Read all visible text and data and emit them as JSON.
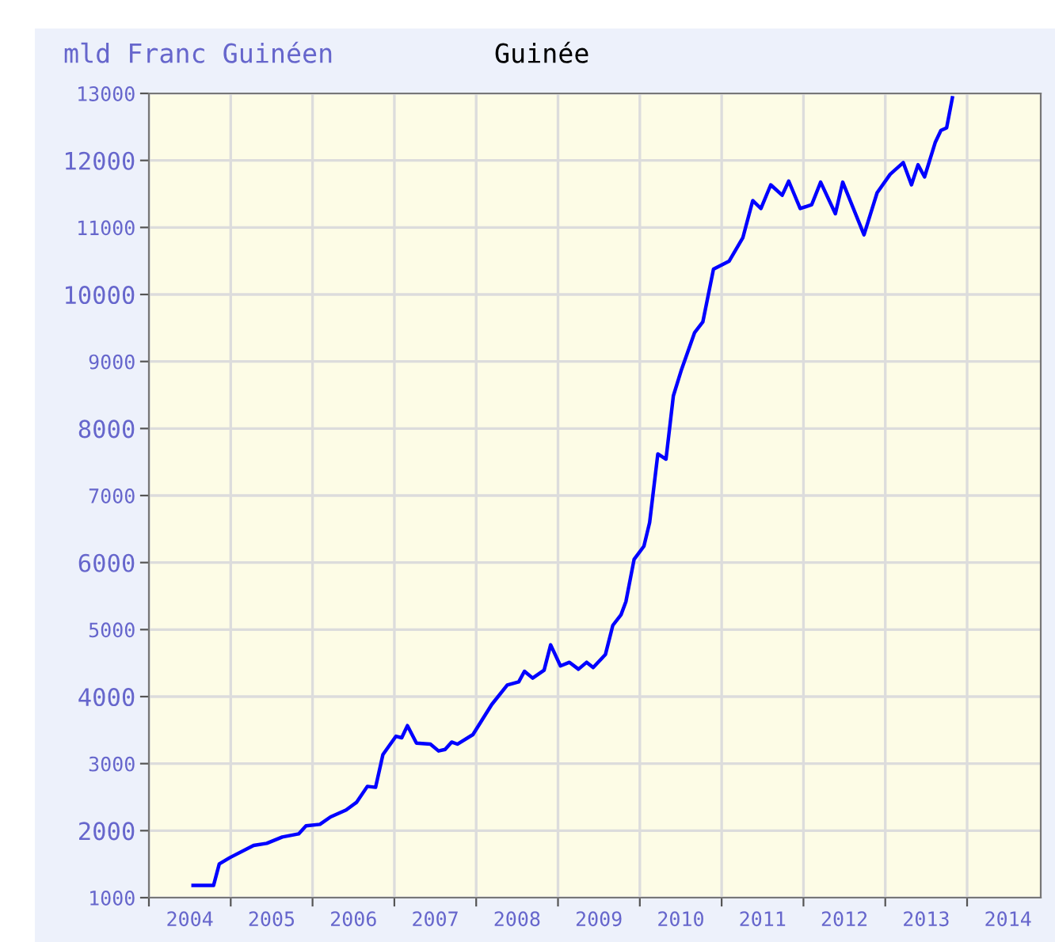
{
  "chart_data": {
    "type": "line",
    "title": "Guinée",
    "ylabel": "mld Franc Guinéen",
    "x": [
      2004.54,
      2004.79,
      2004.86,
      2004.99,
      2005.28,
      2005.44,
      2005.63,
      2005.83,
      2005.92,
      2006.09,
      2006.22,
      2006.41,
      2006.54,
      2006.67,
      2006.77,
      2006.86,
      2007.02,
      2007.09,
      2007.16,
      2007.27,
      2007.44,
      2007.54,
      2007.62,
      2007.7,
      2007.77,
      2007.96,
      2008.19,
      2008.38,
      2008.52,
      2008.59,
      2008.69,
      2008.83,
      2008.91,
      2009.03,
      2009.14,
      2009.25,
      2009.35,
      2009.43,
      2009.58,
      2009.67,
      2009.77,
      2009.83,
      2009.93,
      2010.05,
      2010.12,
      2010.22,
      2010.32,
      2010.41,
      2010.51,
      2010.67,
      2010.77,
      2010.9,
      2011.09,
      2011.26,
      2011.38,
      2011.48,
      2011.6,
      2011.74,
      2011.82,
      2011.96,
      2012.1,
      2012.21,
      2012.39,
      2012.48,
      2012.74,
      2012.9,
      2013.06,
      2013.22,
      2013.32,
      2013.4,
      2013.48,
      2013.61,
      2013.68,
      2013.75,
      2013.82
    ],
    "series": [
      {
        "color": "#0000ff",
        "values": [
          1182,
          1182,
          1503,
          1598,
          1780,
          1811,
          1905,
          1952,
          2071,
          2094,
          2205,
          2307,
          2425,
          2661,
          2646,
          3134,
          3409,
          3386,
          3567,
          3307,
          3291,
          3189,
          3212,
          3322,
          3291,
          3433,
          3882,
          4173,
          4220,
          4378,
          4276,
          4394,
          4772,
          4457,
          4512,
          4409,
          4512,
          4433,
          4630,
          5063,
          5221,
          5417,
          6047,
          6244,
          6598,
          7621,
          7543,
          8488,
          8882,
          9432,
          9590,
          10377,
          10495,
          10850,
          11400,
          11282,
          11636,
          11480,
          11692,
          11282,
          11338,
          11676,
          11204,
          11676,
          10890,
          11518,
          11794,
          11967,
          11636,
          11936,
          11754,
          12267,
          12448,
          12487,
          12935
        ]
      }
    ],
    "xlim": [
      2004,
      2014.9
    ],
    "xticks": [
      {
        "value": 2004,
        "label": null
      },
      {
        "value": 2005,
        "label": null
      },
      {
        "value": 2006,
        "label": null
      },
      {
        "value": 2007,
        "label": null
      },
      {
        "value": 2008,
        "label": null
      },
      {
        "value": 2009,
        "label": null
      },
      {
        "value": 2010,
        "label": null
      },
      {
        "value": 2011,
        "label": null
      },
      {
        "value": 2012,
        "label": null
      },
      {
        "value": 2013,
        "label": null
      },
      {
        "value": 2014,
        "label": null
      },
      {
        "value": 2004.5,
        "label": "2004"
      },
      {
        "value": 2005.5,
        "label": "2005"
      },
      {
        "value": 2006.5,
        "label": "2006"
      },
      {
        "value": 2007.5,
        "label": "2007"
      },
      {
        "value": 2008.5,
        "label": "2008"
      },
      {
        "value": 2009.5,
        "label": "2009"
      },
      {
        "value": 2010.5,
        "label": "2010"
      },
      {
        "value": 2011.5,
        "label": "2011"
      },
      {
        "value": 2012.5,
        "label": "2012"
      },
      {
        "value": 2013.5,
        "label": "2013"
      },
      {
        "value": 2014.5,
        "label": "2014"
      }
    ],
    "ylim": [
      1000,
      13000
    ],
    "yticks": [
      1000,
      2000,
      3000,
      4000,
      5000,
      6000,
      7000,
      8000,
      9000,
      10000,
      11000,
      12000,
      13000
    ],
    "grid": true
  }
}
